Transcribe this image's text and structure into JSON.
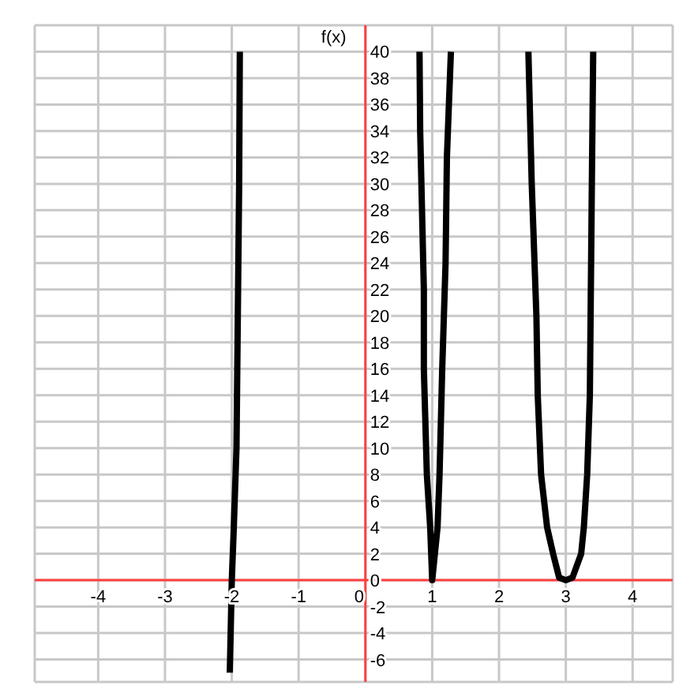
{
  "chart_data": {
    "type": "line",
    "ylabel": "f(x)",
    "series": [
      {
        "color": "#000000",
        "x": [
          -2.03,
          -2.0,
          -1.97,
          -1.93,
          -1.89,
          -1.88
        ],
        "values": [
          -7,
          0,
          4,
          10,
          30,
          40
        ]
      },
      {
        "color": "#000000",
        "x": [
          0.81,
          0.82,
          0.875,
          0.875,
          0.92,
          0.97,
          1.0,
          1.08,
          1.11,
          1.15,
          1.2,
          1.22,
          1.28
        ],
        "values": [
          40,
          34,
          22,
          16,
          8,
          4,
          0,
          4,
          8,
          16,
          24,
          32,
          40
        ]
      },
      {
        "color": "#000000",
        "x": [
          2.44,
          2.49,
          2.56,
          2.58,
          2.63,
          2.72,
          2.81,
          2.9,
          3.0,
          3.1,
          3.23,
          3.27,
          3.32,
          3.36,
          3.39,
          3.41
        ],
        "values": [
          40,
          30,
          20,
          14,
          8,
          4,
          2,
          0.2,
          0,
          0.2,
          2,
          4,
          8,
          14,
          30,
          40
        ]
      }
    ],
    "xlim": [
      -4.95,
      4.6
    ],
    "ylim": [
      -7.7,
      42
    ],
    "xticks": [
      -4,
      -3,
      -2,
      -1,
      0,
      1,
      2,
      3,
      4
    ],
    "yticks": [
      -6,
      -4,
      -2,
      0,
      2,
      4,
      6,
      8,
      10,
      12,
      14,
      16,
      18,
      20,
      22,
      24,
      26,
      28,
      30,
      32,
      34,
      36,
      38,
      40
    ],
    "grid": true,
    "marker": "none",
    "line_style": "solid"
  }
}
